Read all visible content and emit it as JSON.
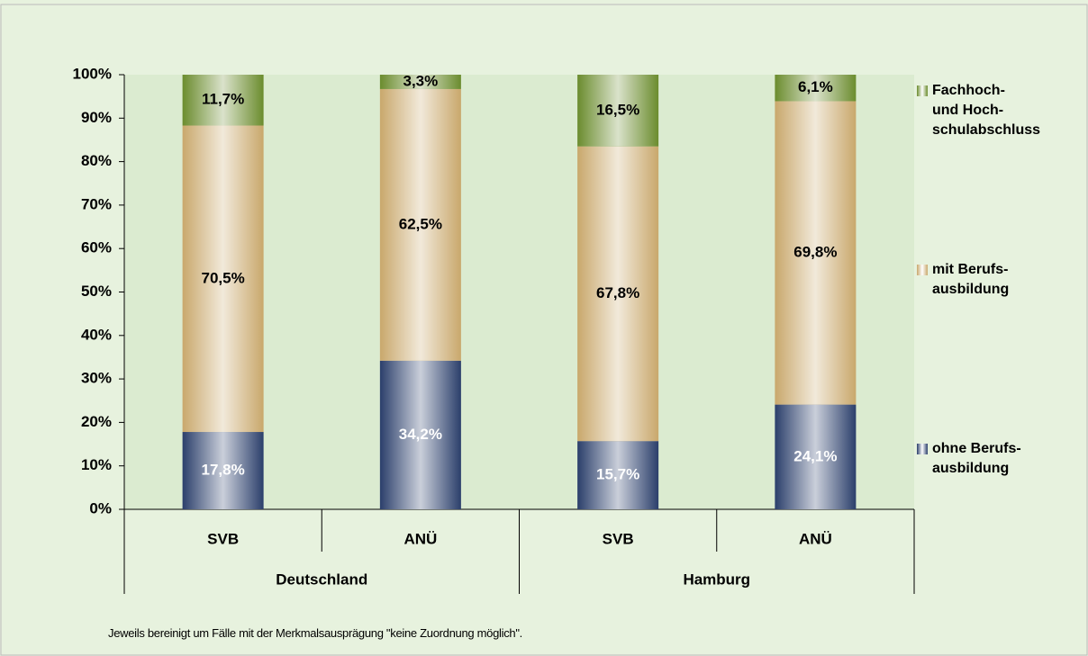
{
  "chart_data": {
    "type": "stacked_bar",
    "categories": [
      "SVB",
      "ANÜ",
      "SVB",
      "ANÜ"
    ],
    "groups": [
      "Deutschland",
      "Hamburg"
    ],
    "series": [
      {
        "name": "ohne Berufs-\nausbildung",
        "color": "#2b3f6b",
        "label_color": "#ffffff",
        "values": [
          17.8,
          34.2,
          15.7,
          24.1
        ],
        "value_labels": [
          "17,8%",
          "34,2%",
          "15,7%",
          "24,1%"
        ]
      },
      {
        "name": "mit Berufs-\nausbildung",
        "color": "#c9a86c",
        "label_color": "#000000",
        "values": [
          70.5,
          62.5,
          67.8,
          69.8
        ],
        "value_labels": [
          "70,5%",
          "62,5%",
          "67,8%",
          "69,8%"
        ]
      },
      {
        "name": "Fachhoch-\nund Hoch-\nschulabschluss",
        "color": "#6b8c2e",
        "label_color": "#000000",
        "values": [
          11.7,
          3.3,
          16.5,
          6.1
        ],
        "value_labels": [
          "11,7%",
          "3,3%",
          "16,5%",
          "6,1%"
        ]
      }
    ],
    "ylim": [
      0,
      100
    ],
    "yticks": [
      {
        "value": 0,
        "label": "0%"
      },
      {
        "value": 10,
        "label": "10%"
      },
      {
        "value": 20,
        "label": "20%"
      },
      {
        "value": 30,
        "label": "30%"
      },
      {
        "value": 40,
        "label": "40%"
      },
      {
        "value": 50,
        "label": "50%"
      },
      {
        "value": 60,
        "label": "60%"
      },
      {
        "value": 70,
        "label": "70%"
      },
      {
        "value": 80,
        "label": "80%"
      },
      {
        "value": 90,
        "label": "90%"
      },
      {
        "value": 100,
        "label": "100%"
      }
    ],
    "footnote": "Jeweils bereinigt um Fälle mit der Merkmalsausprägung \"keine Zuordnung möglich\"."
  }
}
